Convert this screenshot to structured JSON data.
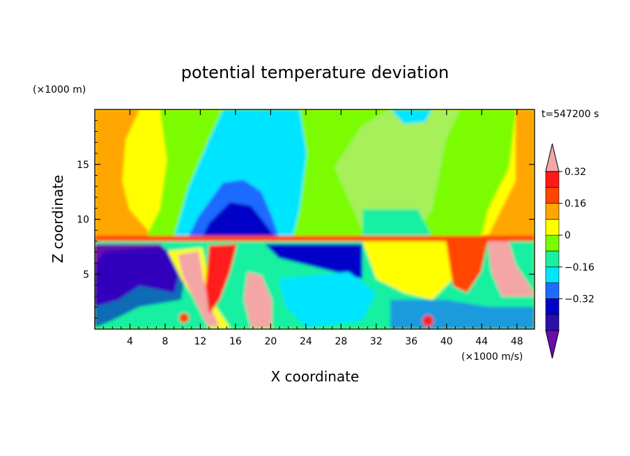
{
  "chart_data": {
    "type": "heatmap",
    "title": "potential temperature deviation",
    "xlabel": "X coordinate",
    "ylabel": "Z coordinate",
    "x_unit_label": "(×1000 m/s)",
    "y_unit_label": "(×1000 m)",
    "time_label": "t=547200 s",
    "xlim": [
      0,
      50
    ],
    "ylim": [
      0,
      20
    ],
    "x_ticks": [
      4,
      8,
      12,
      16,
      20,
      24,
      28,
      32,
      36,
      40,
      44,
      48
    ],
    "y_ticks": [
      5,
      10,
      15
    ],
    "colorbar": {
      "levels": [
        -0.48,
        -0.4,
        -0.32,
        -0.24,
        -0.16,
        -0.08,
        0,
        0.08,
        0.16,
        0.24,
        0.32,
        0.4
      ],
      "labeled_ticks": [
        0.32,
        0.16,
        0,
        -0.16,
        -0.32
      ],
      "tick_labels": [
        "0.32",
        "0.16",
        "0",
        "−0.16",
        "−0.32"
      ],
      "colors": [
        "#6a0dad",
        "#2b0fa8",
        "#0000c8",
        "#1e6bff",
        "#00e5ff",
        "#19f0a0",
        "#7cfc00",
        "#ffff00",
        "#ffa500",
        "#ff4500",
        "#ff1a1a",
        "#f4a6a6"
      ],
      "extend": "both"
    },
    "field_regions": [
      {
        "description": "upper layer background",
        "value": 0.04
      },
      {
        "description": "upper left warm band",
        "value": 0.14
      },
      {
        "description": "central cold plume top",
        "value": -0.34
      },
      {
        "description": "right upper green area",
        "value": 0.02
      },
      {
        "description": "lower left cold lobe",
        "value": -0.45
      },
      {
        "description": "lower warm plumes",
        "value": 0.4
      }
    ]
  }
}
